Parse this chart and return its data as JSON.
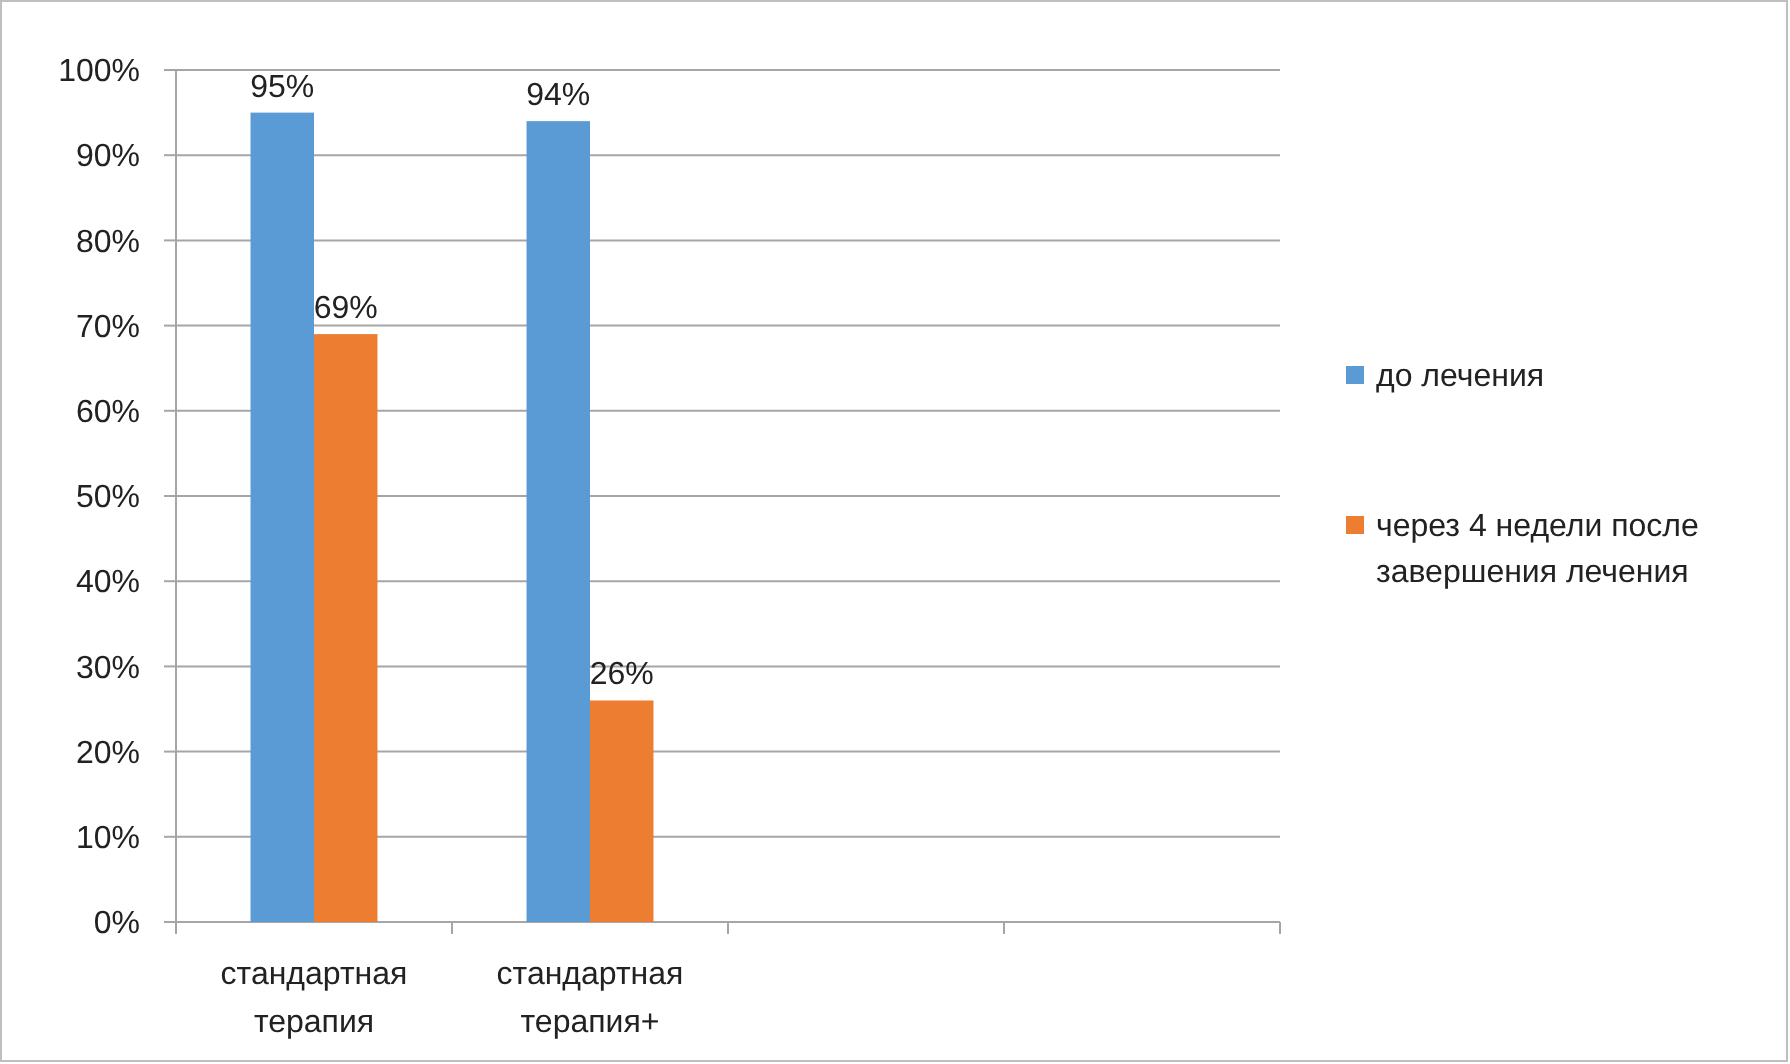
{
  "chart_data": {
    "type": "bar",
    "categories": [
      "стандартная терапия",
      "стандартная терапия+",
      null,
      null
    ],
    "series": [
      {
        "name": "до лечения",
        "color": "#5b9bd5",
        "values": [
          95,
          94,
          null,
          null
        ],
        "value_labels": [
          "95%",
          "94%",
          null,
          null
        ]
      },
      {
        "name": "через 4 недели после завершения лечения",
        "color": "#ed7d31",
        "values": [
          69,
          26,
          null,
          null
        ],
        "value_labels": [
          "69%",
          "26%",
          null,
          null
        ]
      }
    ],
    "ylim": [
      0,
      100
    ],
    "yticks": [
      {
        "value": 0,
        "label": "0%"
      },
      {
        "value": 10,
        "label": "10%"
      },
      {
        "value": 20,
        "label": "20%"
      },
      {
        "value": 30,
        "label": "30%"
      },
      {
        "value": 40,
        "label": "40%"
      },
      {
        "value": 50,
        "label": "50%"
      },
      {
        "value": 60,
        "label": "60%"
      },
      {
        "value": 70,
        "label": "70%"
      },
      {
        "value": 80,
        "label": "80%"
      },
      {
        "value": 90,
        "label": "90%"
      },
      {
        "value": 100,
        "label": "100%"
      }
    ],
    "grid": "y",
    "legend": "right"
  }
}
